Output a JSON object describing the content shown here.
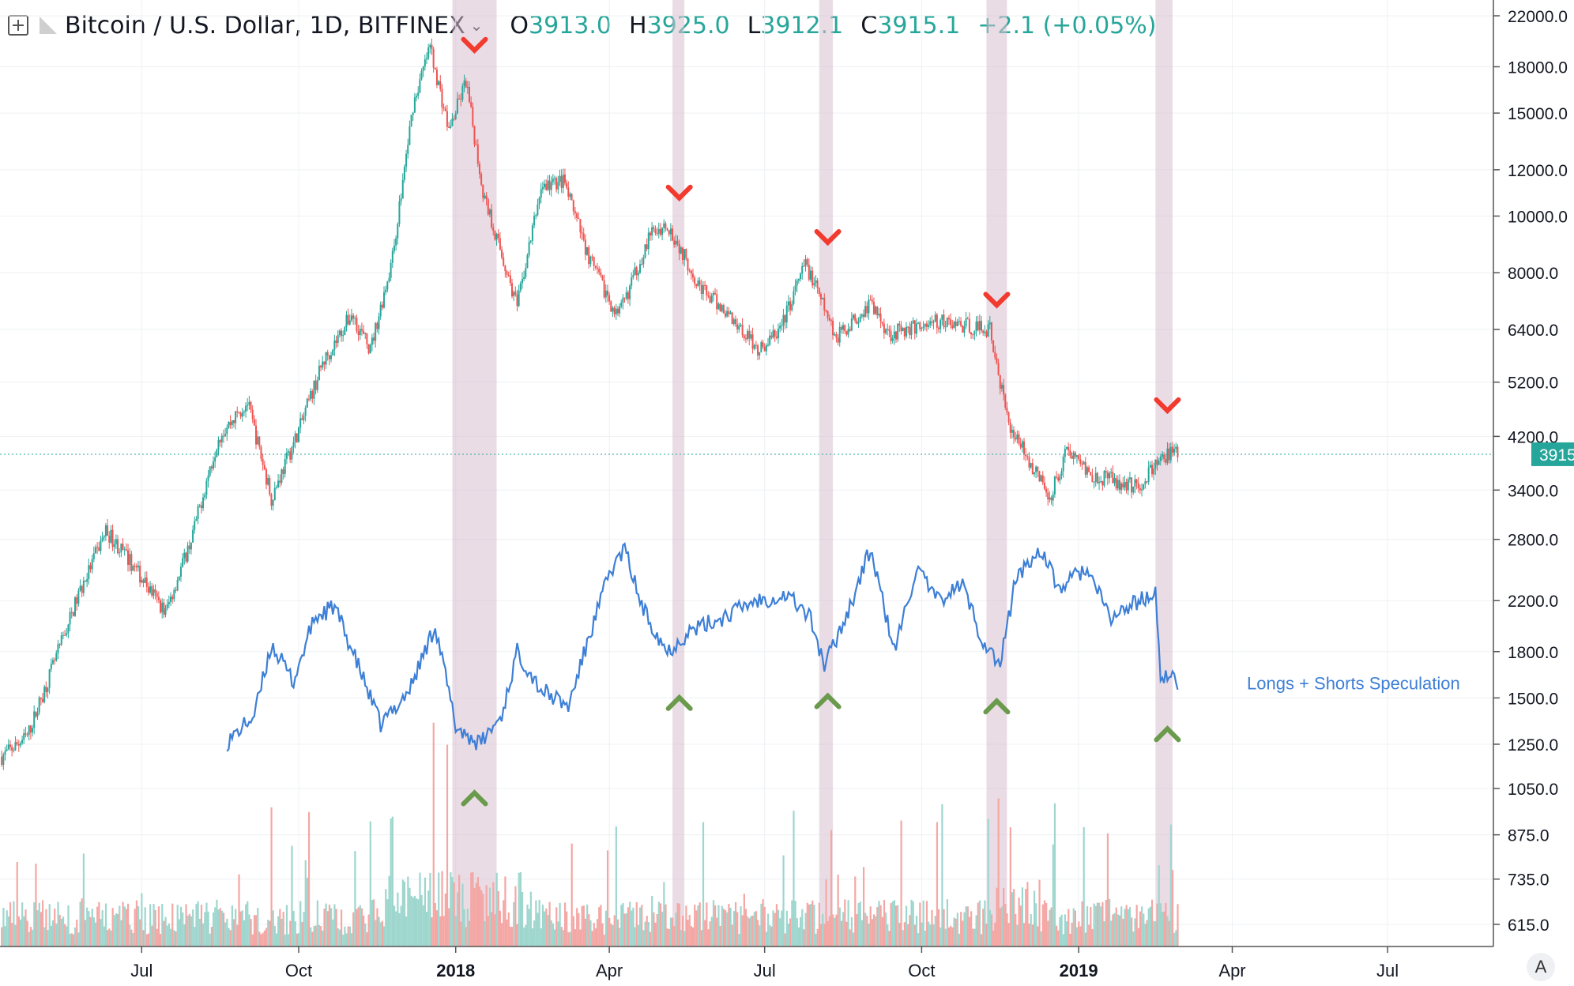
{
  "header": {
    "symbol": "Bitcoin / U.S. Dollar, 1D, BITFINEX",
    "o_label": "O",
    "o_value": "3913.0",
    "h_label": "H",
    "h_value": "3925.0",
    "l_label": "L",
    "l_value": "3912.1",
    "c_label": "C",
    "c_value": "3915.1",
    "change": "+2.1 (+0.05%)",
    "add_icon": "plus-square-icon",
    "flag_icon": "flag-icon",
    "dropdown_icon": "chevron-down-icon"
  },
  "axis_button": "A",
  "colors": {
    "up": "#26a69a",
    "down": "#ef5350",
    "vol_up": "#9ed6ce",
    "vol_down": "#f4a7a4",
    "speculation": "#3d7fd6",
    "highlight": "#d9bfcf",
    "sell_marker": "#f23a2e",
    "buy_marker": "#6a9a4c"
  },
  "chart_data": {
    "type": "candlestick",
    "y_scale": "log",
    "x_tick_labels": [
      {
        "label": "Jul",
        "date": "2017-07-01"
      },
      {
        "label": "Oct",
        "date": "2017-10-01"
      },
      {
        "label": "2018",
        "date": "2018-01-01",
        "bold": true
      },
      {
        "label": "Apr",
        "date": "2018-04-01"
      },
      {
        "label": "Jul",
        "date": "2018-07-01"
      },
      {
        "label": "Oct",
        "date": "2018-10-01"
      },
      {
        "label": "2019",
        "date": "2019-01-01",
        "bold": true
      },
      {
        "label": "Apr",
        "date": "2019-04-01"
      },
      {
        "label": "Jul",
        "date": "2019-07-01"
      }
    ],
    "y_tick_labels": [
      "22000.0",
      "18000.0",
      "15000.0",
      "12000.0",
      "10000.0",
      "8000.0",
      "6400.0",
      "5200.0",
      "4200.0",
      "3400.0",
      "2800.0",
      "2200.0",
      "1800.0",
      "1500.0",
      "1250.0",
      "1050.0",
      "875.0",
      "735.0",
      "615.0"
    ],
    "last_price": "3915.1",
    "price_anchors": [
      [
        "2017-04-10",
        1190
      ],
      [
        "2017-04-25",
        1290
      ],
      [
        "2017-05-10",
        1700
      ],
      [
        "2017-05-25",
        2250
      ],
      [
        "2017-06-10",
        2900
      ],
      [
        "2017-06-25",
        2550
      ],
      [
        "2017-07-15",
        2100
      ],
      [
        "2017-07-30",
        2800
      ],
      [
        "2017-08-15",
        4200
      ],
      [
        "2017-09-01",
        4800
      ],
      [
        "2017-09-15",
        3300
      ],
      [
        "2017-10-01",
        4300
      ],
      [
        "2017-10-15",
        5600
      ],
      [
        "2017-11-01",
        6800
      ],
      [
        "2017-11-12",
        5900
      ],
      [
        "2017-11-25",
        8500
      ],
      [
        "2017-12-07",
        15500
      ],
      [
        "2017-12-17",
        19500
      ],
      [
        "2017-12-28",
        14000
      ],
      [
        "2018-01-07",
        17000
      ],
      [
        "2018-01-17",
        11000
      ],
      [
        "2018-02-06",
        7000
      ],
      [
        "2018-02-20",
        11200
      ],
      [
        "2018-03-05",
        11500
      ],
      [
        "2018-03-20",
        8500
      ],
      [
        "2018-04-06",
        6700
      ],
      [
        "2018-04-25",
        9300
      ],
      [
        "2018-05-05",
        9700
      ],
      [
        "2018-05-25",
        7500
      ],
      [
        "2018-06-12",
        6700
      ],
      [
        "2018-06-28",
        5900
      ],
      [
        "2018-07-10",
        6400
      ],
      [
        "2018-07-25",
        8300
      ],
      [
        "2018-08-12",
        6200
      ],
      [
        "2018-09-01",
        7100
      ],
      [
        "2018-09-12",
        6300
      ],
      [
        "2018-10-10",
        6600
      ],
      [
        "2018-11-10",
        6400
      ],
      [
        "2018-11-20",
        4500
      ],
      [
        "2018-12-15",
        3300
      ],
      [
        "2018-12-25",
        4000
      ],
      [
        "2019-01-10",
        3600
      ],
      [
        "2019-02-05",
        3450
      ],
      [
        "2019-02-20",
        3900
      ],
      [
        "2019-02-28",
        3915
      ]
    ],
    "speculation_series": {
      "name": "Longs + Shorts Speculation",
      "anchors": [
        [
          "2017-08-20",
          1260
        ],
        [
          "2017-09-05",
          1400
        ],
        [
          "2017-09-15",
          1850
        ],
        [
          "2017-09-28",
          1600
        ],
        [
          "2017-10-10",
          2050
        ],
        [
          "2017-10-22",
          2150
        ],
        [
          "2017-11-05",
          1700
        ],
        [
          "2017-11-18",
          1350
        ],
        [
          "2017-12-05",
          1550
        ],
        [
          "2017-12-20",
          2000
        ],
        [
          "2018-01-01",
          1340
        ],
        [
          "2018-01-15",
          1250
        ],
        [
          "2018-01-28",
          1400
        ],
        [
          "2018-02-06",
          1800
        ],
        [
          "2018-02-20",
          1550
        ],
        [
          "2018-03-08",
          1450
        ],
        [
          "2018-03-20",
          1900
        ],
        [
          "2018-04-01",
          2450
        ],
        [
          "2018-04-10",
          2700
        ],
        [
          "2018-04-20",
          2150
        ],
        [
          "2018-05-05",
          1800
        ],
        [
          "2018-05-18",
          1950
        ],
        [
          "2018-06-05",
          2050
        ],
        [
          "2018-06-25",
          2200
        ],
        [
          "2018-07-15",
          2250
        ],
        [
          "2018-07-28",
          2050
        ],
        [
          "2018-08-05",
          1700
        ],
        [
          "2018-08-20",
          2150
        ],
        [
          "2018-09-01",
          2700
        ],
        [
          "2018-09-15",
          1800
        ],
        [
          "2018-09-28",
          2500
        ],
        [
          "2018-10-10",
          2200
        ],
        [
          "2018-10-25",
          2350
        ],
        [
          "2018-11-05",
          1900
        ],
        [
          "2018-11-16",
          1700
        ],
        [
          "2018-11-25",
          2400
        ],
        [
          "2018-12-10",
          2700
        ],
        [
          "2018-12-20",
          2300
        ],
        [
          "2019-01-05",
          2500
        ],
        [
          "2019-01-20",
          2050
        ],
        [
          "2019-02-05",
          2200
        ],
        [
          "2019-02-15",
          2250
        ],
        [
          "2019-02-18",
          1650
        ],
        [
          "2019-02-28",
          1600
        ]
      ]
    },
    "highlight_periods": [
      [
        "2017-12-30",
        "2018-01-25"
      ],
      [
        "2018-05-08",
        "2018-05-15"
      ],
      [
        "2018-08-02",
        "2018-08-10"
      ],
      [
        "2018-11-08",
        "2018-11-20"
      ],
      [
        "2019-02-15",
        "2019-02-25"
      ]
    ],
    "sell_markers": [
      [
        "2018-01-12",
        19500
      ],
      [
        "2018-05-12",
        10900
      ],
      [
        "2018-08-07",
        9150
      ],
      [
        "2018-11-14",
        7150
      ],
      [
        "2019-02-22",
        4720
      ]
    ],
    "buy_markers": [
      [
        "2018-01-12",
        1010
      ],
      [
        "2018-05-12",
        1470
      ],
      [
        "2018-08-07",
        1480
      ],
      [
        "2018-11-14",
        1450
      ],
      [
        "2019-02-22",
        1300
      ]
    ]
  }
}
